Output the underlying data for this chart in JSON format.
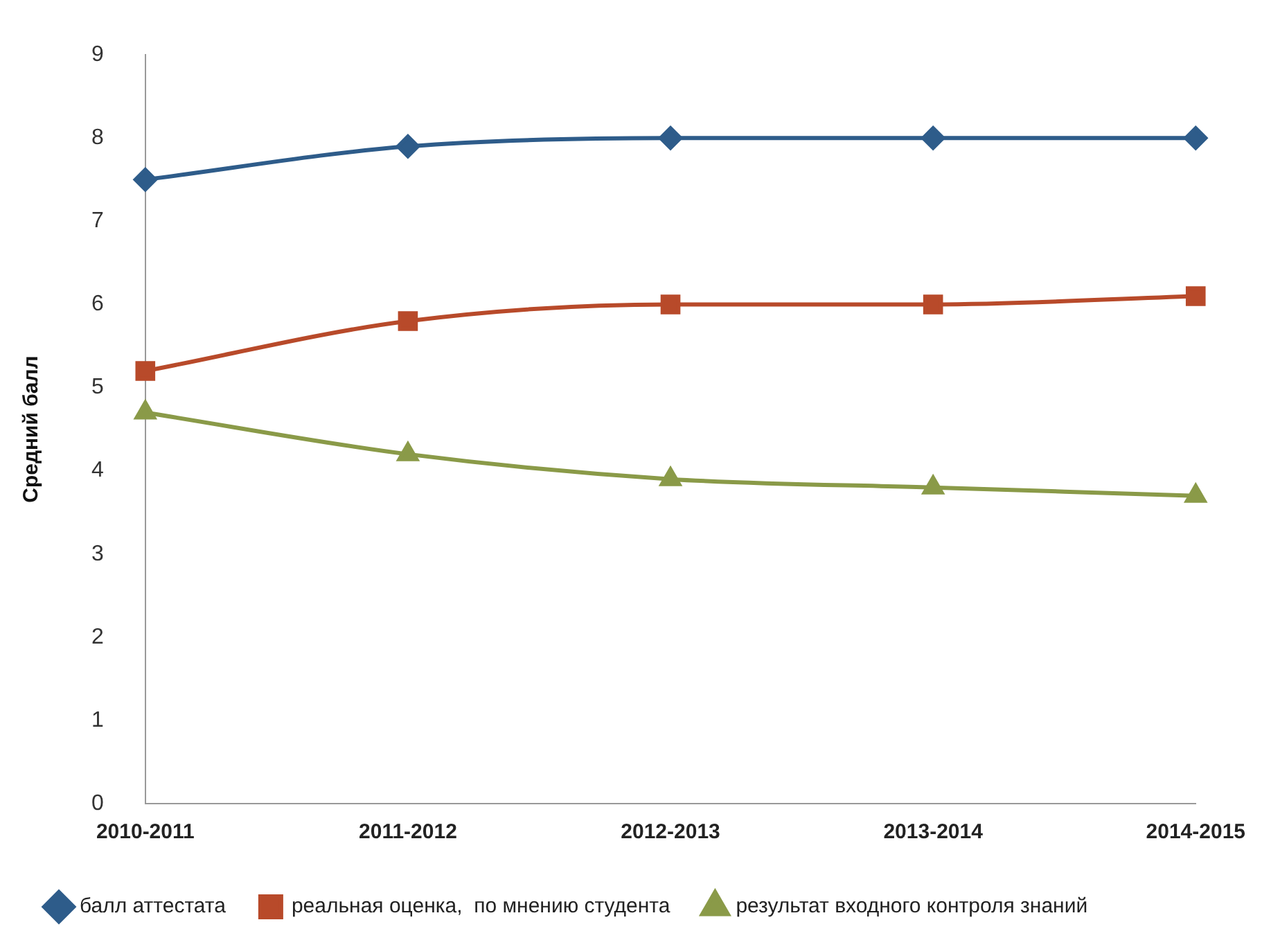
{
  "chart_data": {
    "type": "line",
    "ylabel": "Средний балл",
    "categories": [
      "2010-2011",
      "2011-2012",
      "2012-2013",
      "2013-2014",
      "2014-2015"
    ],
    "series": [
      {
        "name": "балл аттестата",
        "color": "#2e5c8a",
        "marker": "diamond",
        "values": [
          7.5,
          7.9,
          8.0,
          8.0,
          8.0
        ]
      },
      {
        "name": "реальная оценка,  по мнению студента",
        "color": "#b84a2a",
        "marker": "square",
        "values": [
          5.2,
          5.8,
          6.0,
          6.0,
          6.1
        ]
      },
      {
        "name": "результат входного контроля знаний",
        "color": "#8a9a48",
        "marker": "triangle",
        "values": [
          4.7,
          4.2,
          3.9,
          3.8,
          3.7
        ]
      }
    ],
    "ylim": [
      0,
      9
    ],
    "yticks": [
      0,
      1,
      2,
      3,
      4,
      5,
      6,
      7,
      8,
      9
    ],
    "grid": false,
    "legend": "bottom",
    "line_style": "solid"
  }
}
